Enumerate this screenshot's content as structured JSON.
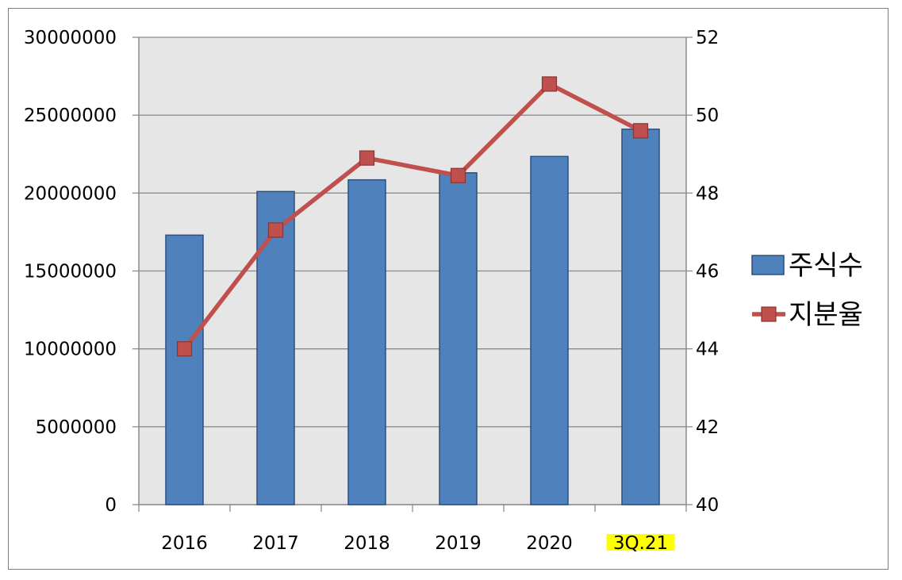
{
  "chart_data": {
    "type": "bar",
    "categories": [
      "2016",
      "2017",
      "2018",
      "2019",
      "2020",
      "3Q.21"
    ],
    "highlighted_category": "3Q.21",
    "series": [
      {
        "name": "주식수",
        "type": "bar",
        "axis": "left",
        "color": "#4f81bd",
        "values": [
          17300000,
          20100000,
          20850000,
          21300000,
          22350000,
          24100000
        ]
      },
      {
        "name": "지분율",
        "type": "line",
        "axis": "right",
        "color": "#c0504d",
        "marker": "square",
        "values": [
          44.0,
          47.05,
          48.9,
          48.45,
          50.8,
          49.6
        ]
      }
    ],
    "left_axis": {
      "range": [
        0,
        30000000
      ],
      "ticks": [
        "0",
        "5000000",
        "10000000",
        "15000000",
        "20000000",
        "25000000",
        "30000000"
      ]
    },
    "right_axis": {
      "range": [
        40,
        52
      ],
      "ticks": [
        "40",
        "42",
        "44",
        "46",
        "48",
        "50",
        "52"
      ]
    },
    "grid": true,
    "plot_background": "#e6e6e6",
    "highlight_color": "#ffff00",
    "legend_position": "right"
  }
}
